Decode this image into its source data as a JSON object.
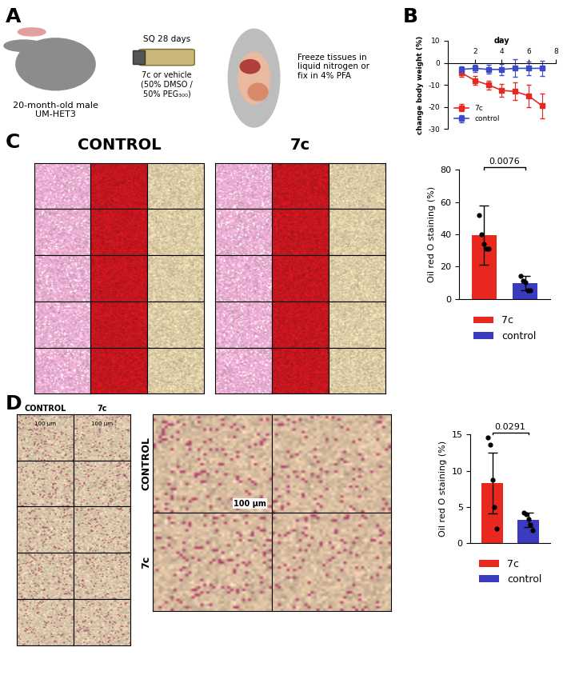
{
  "panel_labels": [
    "A",
    "B",
    "C",
    "D"
  ],
  "diagram": {
    "mouse_label": "20-month-old male\nUM-HET3",
    "treatment_top": "SQ 28 days",
    "treatment_bottom": "7c or vehicle\n(50% DMSO /\n50% PEG₃₀₀)",
    "tissue_label": "Freeze tissues in\nliquid nitrogen or\nfix in 4% PFA"
  },
  "images_C": {
    "groups": [
      "CONTROL",
      "7c"
    ]
  },
  "images_D": {
    "groups": [
      "CONTROL",
      "7c"
    ],
    "scale_bar": "100 µm"
  },
  "chart_data": [
    {
      "type": "line",
      "x_label": "day",
      "y_label": "change body weight (%)",
      "x": [
        1,
        2,
        3,
        4,
        5,
        6,
        7
      ],
      "xlim": [
        0,
        8
      ],
      "xticks": [
        2,
        4,
        6,
        8
      ],
      "ylim": [
        -30,
        10
      ],
      "yticks": [
        -30,
        -20,
        -10,
        0,
        10
      ],
      "legend": "lower left",
      "series": [
        {
          "name": "7c",
          "color": "#e8281e",
          "marker": "square",
          "values": [
            -4.5,
            -8,
            -10,
            -12.5,
            -13,
            -15,
            -19.5
          ],
          "errors": [
            2,
            2,
            2,
            3,
            4,
            5,
            5.5
          ]
        },
        {
          "name": "control",
          "color": "#3b4bc8",
          "marker": "square",
          "values": [
            -3,
            -2.5,
            -3,
            -3,
            -2.5,
            -2.5,
            -2.5
          ],
          "errors": [
            1.5,
            1.5,
            2,
            2.5,
            4,
            3,
            3.5
          ]
        }
      ]
    },
    {
      "type": "bar",
      "categories": [
        "7c",
        "control"
      ],
      "values": [
        39.5,
        9.5
      ],
      "colors": [
        "#e8281e",
        "#3b3bc0"
      ],
      "errors": [
        18.5,
        4.5
      ],
      "points": [
        [
          52,
          40,
          34,
          31,
          31
        ],
        [
          14,
          11,
          10,
          5,
          5
        ]
      ],
      "y_label": "Oil red O staining (%)",
      "ylim": [
        0,
        80
      ],
      "yticks": [
        0,
        20,
        40,
        60,
        80
      ],
      "tick_labels": "y",
      "legend": "below",
      "annotations": [
        "0.0076"
      ]
    },
    {
      "type": "bar",
      "categories": [
        "7c",
        "control"
      ],
      "values": [
        8.3,
        3.2
      ],
      "colors": [
        "#e8281e",
        "#3b3bc0"
      ],
      "errors": [
        4.2,
        1.0
      ],
      "points": [
        [
          14.6,
          13.6,
          8.7,
          5,
          2
        ],
        [
          4.2,
          4.0,
          3.3,
          2.6,
          1.8
        ]
      ],
      "y_label": "Oil red O staining (%)",
      "ylim": [
        0,
        15
      ],
      "yticks": [
        0,
        5,
        10,
        15
      ],
      "tick_labels": "y",
      "legend": "below",
      "annotations": [
        "0.0291"
      ]
    }
  ]
}
